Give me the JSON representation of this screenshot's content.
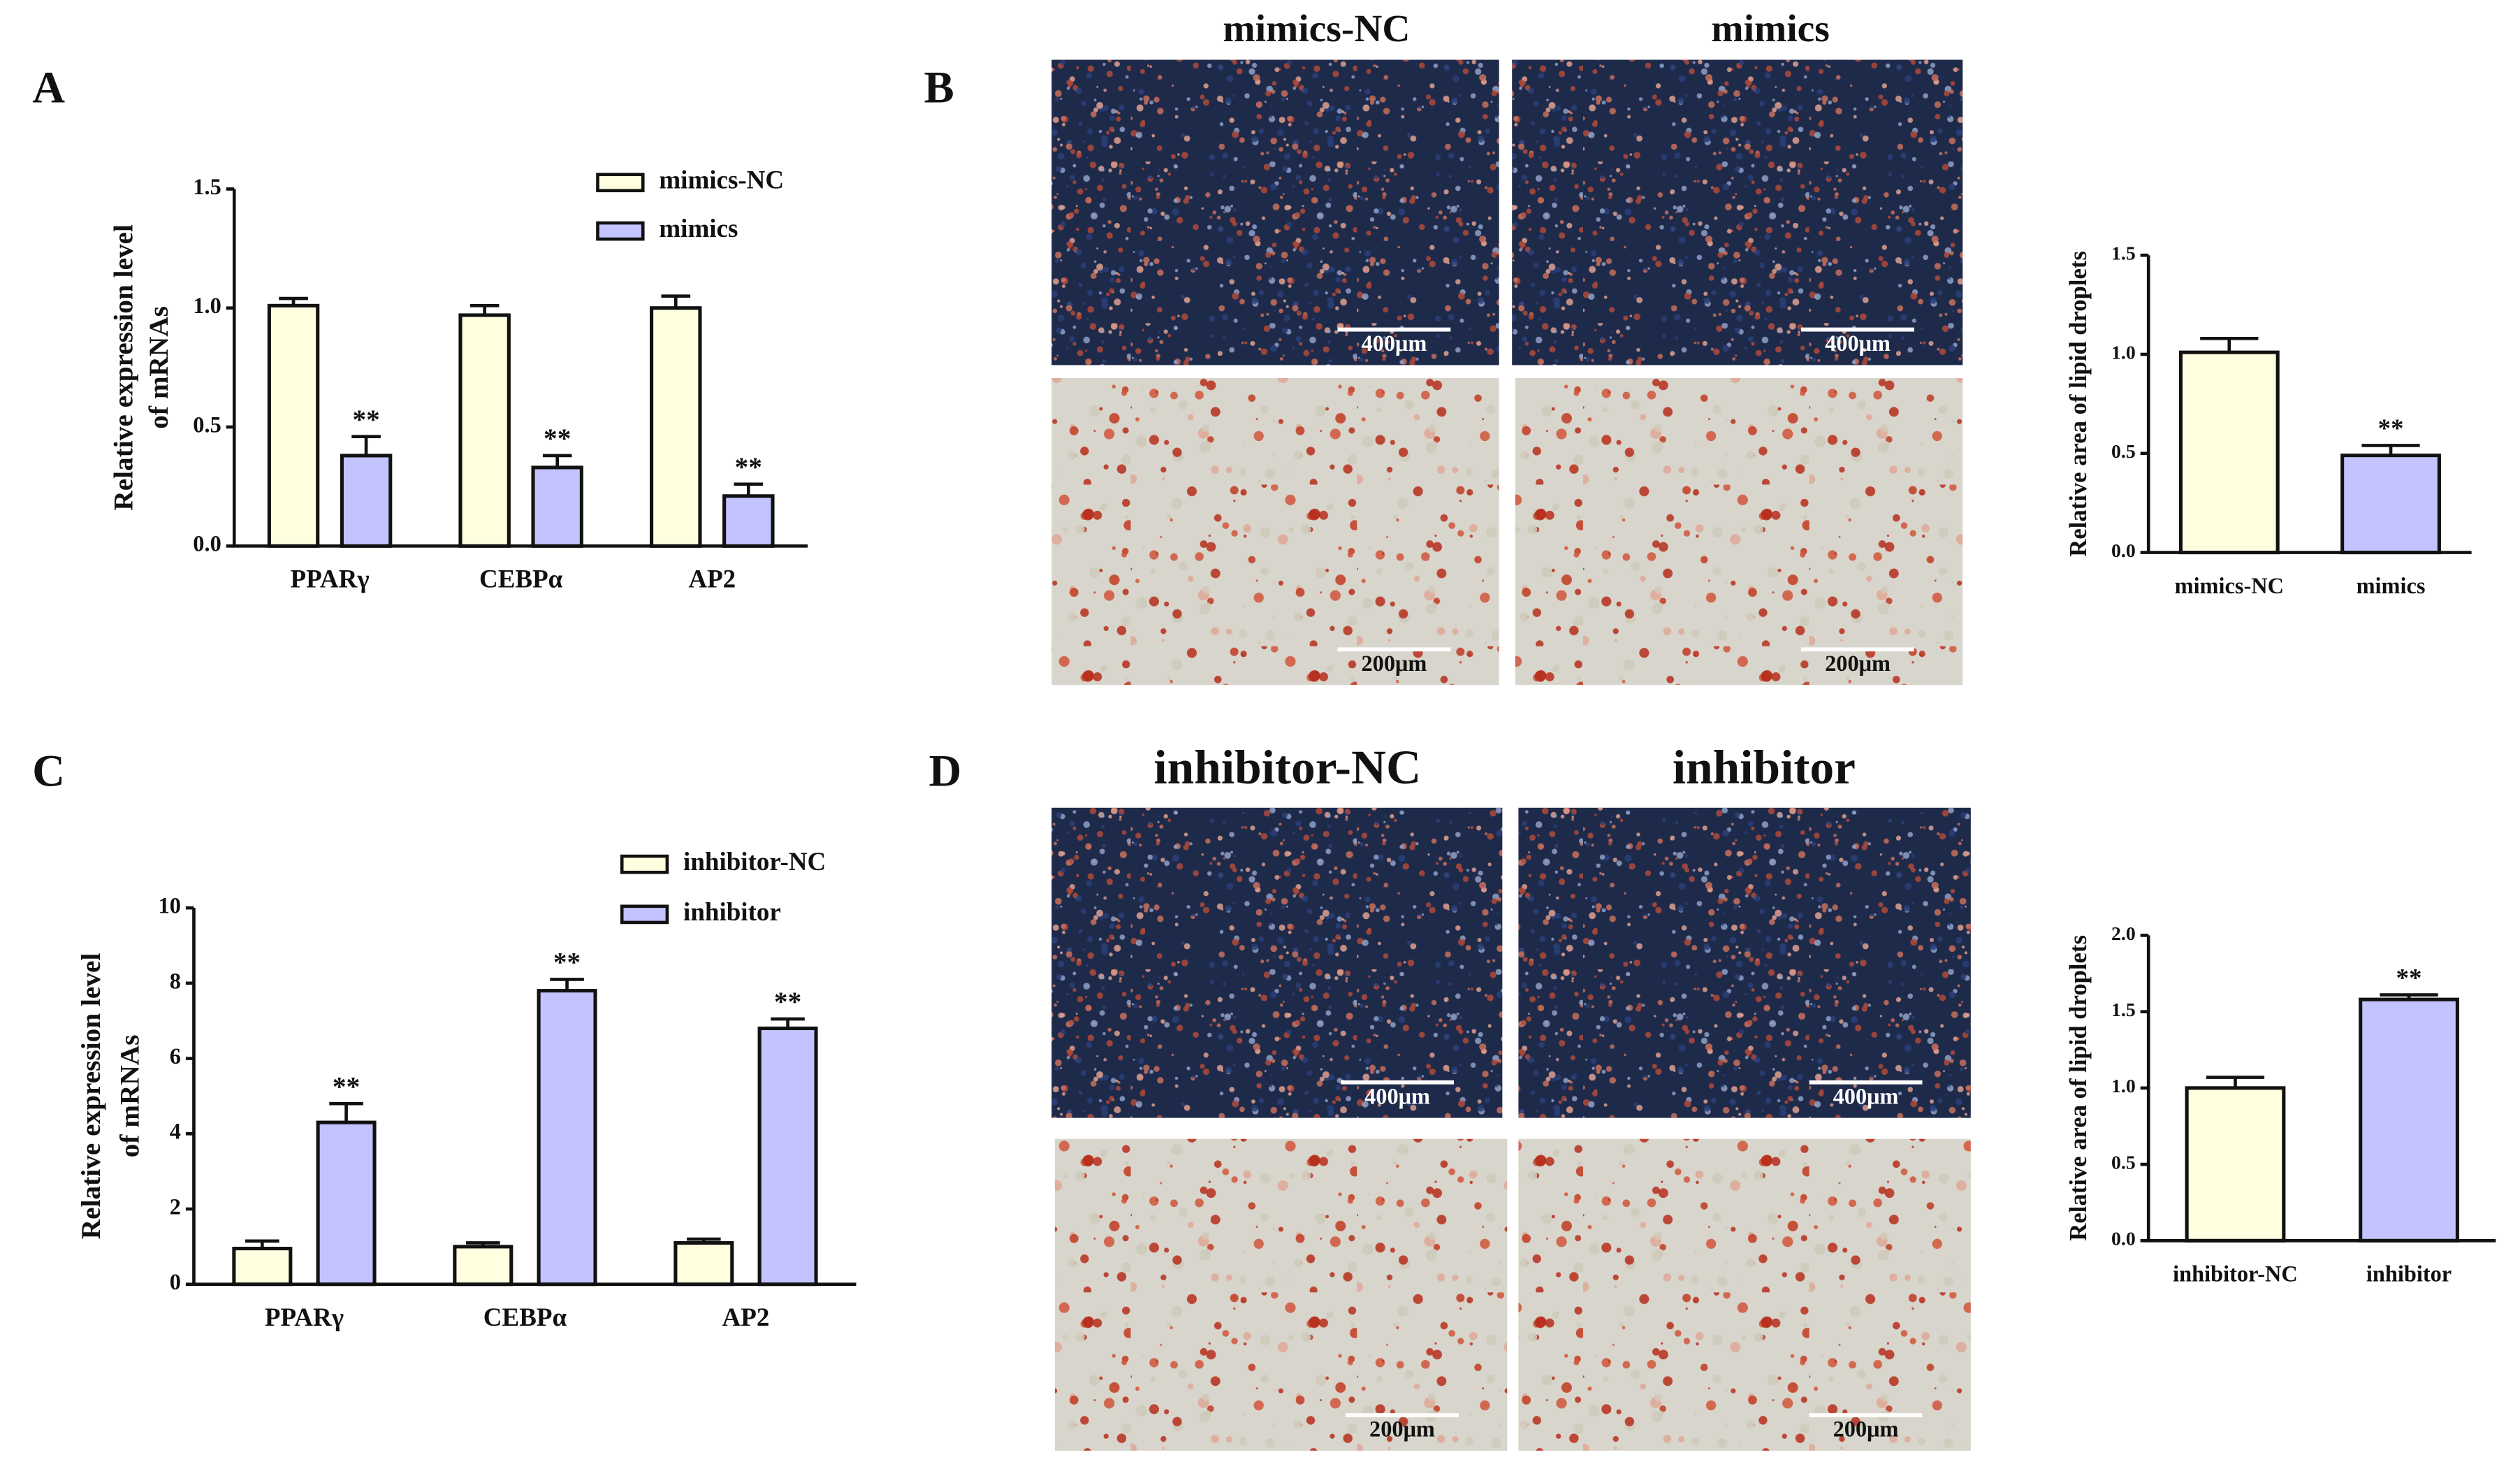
{
  "panels": [
    "A",
    "B",
    "C",
    "D"
  ],
  "micrographs": {
    "B": {
      "titles": [
        "mimics-NC",
        "mimics"
      ],
      "scales": [
        "400μm",
        "400μm",
        "200μm",
        "200μm"
      ]
    },
    "D": {
      "titles": [
        "inhibitor-NC",
        "inhibitor"
      ],
      "scales": [
        "400μm",
        "400μm",
        "200μm",
        "200μm"
      ]
    }
  },
  "chart_data": [
    {
      "type": "grouped_bar",
      "ylabel": [
        "Relative expression level",
        "of mRNAs"
      ],
      "categories": [
        "PPARγ",
        "CEBPα",
        "AP2"
      ],
      "series": [
        {
          "name": "mimics-NC",
          "color": "#ffffe0",
          "values": [
            1.01,
            0.97,
            1.0
          ],
          "errors": [
            0.03,
            0.04,
            0.05
          ],
          "significance": [
            null,
            null,
            null
          ]
        },
        {
          "name": "mimics",
          "color": "#c3c3ff",
          "values": [
            0.38,
            0.33,
            0.21
          ],
          "errors": [
            0.08,
            0.05,
            0.05
          ],
          "significance": [
            "**",
            "**",
            "**"
          ]
        }
      ],
      "ylim": [
        0,
        1.5
      ],
      "yticks": [
        {
          "value": 0,
          "label": "0.0"
        },
        0.5,
        {
          "value": 1,
          "label": "1.0"
        },
        1.5
      ]
    },
    {
      "type": "bar",
      "ylabel": [
        "Relative area of lipid droplets"
      ],
      "categories": [
        "mimics-NC",
        "mimics"
      ],
      "values": [
        1.01,
        0.49
      ],
      "errors": [
        0.07,
        0.05
      ],
      "colors": [
        "#ffffe0",
        "#c3c3ff"
      ],
      "significance": [
        null,
        "**"
      ],
      "ylim": [
        0,
        1.5
      ],
      "yticks": [
        {
          "value": 0,
          "label": "0.0"
        },
        0.5,
        {
          "value": 1,
          "label": "1.0"
        },
        1.5
      ]
    },
    {
      "type": "grouped_bar",
      "ylabel": [
        "Relative expression level",
        "of mRNAs"
      ],
      "categories": [
        "PPARγ",
        "CEBPα",
        "AP2"
      ],
      "series": [
        {
          "name": "inhibitor-NC",
          "color": "#ffffe0",
          "values": [
            0.95,
            1.0,
            1.1
          ],
          "errors": [
            0.2,
            0.1,
            0.1
          ],
          "significance": [
            null,
            null,
            null
          ]
        },
        {
          "name": "inhibitor",
          "color": "#c3c3ff",
          "values": [
            4.3,
            7.8,
            6.8
          ],
          "errors": [
            0.5,
            0.3,
            0.25
          ],
          "significance": [
            "**",
            "**",
            "**"
          ]
        }
      ],
      "ylim": [
        0,
        10
      ],
      "yticks": [
        0,
        2,
        4,
        6,
        8,
        10
      ]
    },
    {
      "type": "bar",
      "ylabel": [
        "Relative area of lipid droplets"
      ],
      "categories": [
        "inhibitor-NC",
        "inhibitor"
      ],
      "values": [
        1.0,
        1.58
      ],
      "errors": [
        0.07,
        0.03
      ],
      "colors": [
        "#ffffe0",
        "#c3c3ff"
      ],
      "significance": [
        null,
        "**"
      ],
      "ylim": [
        0,
        2.0
      ],
      "yticks": [
        {
          "value": 0,
          "label": "0.0"
        },
        0.5,
        {
          "value": 1,
          "label": "1.0"
        },
        1.5,
        {
          "value": 2,
          "label": "2.0"
        }
      ]
    }
  ]
}
